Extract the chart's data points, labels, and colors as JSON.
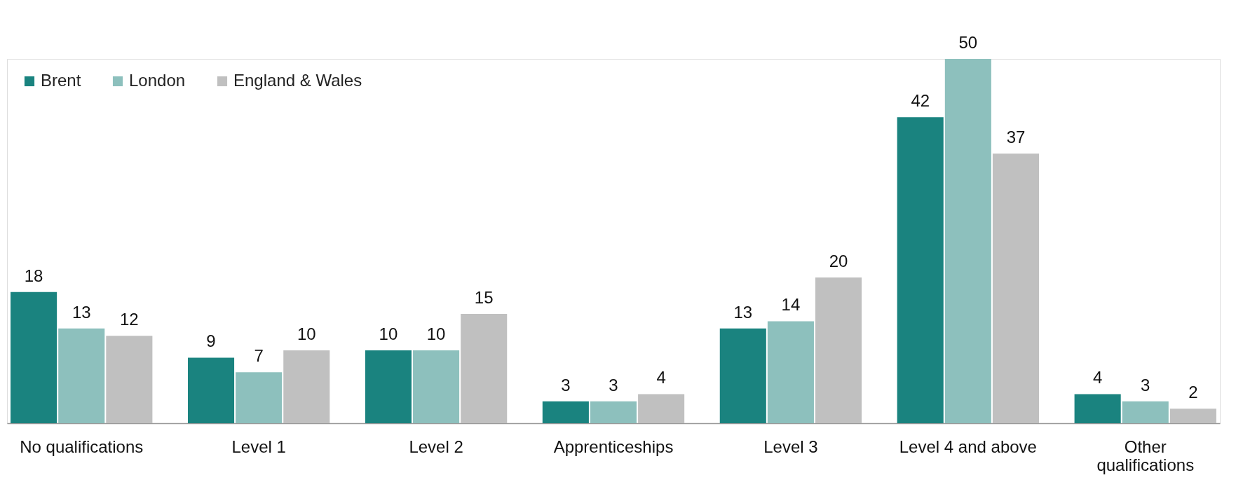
{
  "chart_data": {
    "type": "bar",
    "categories": [
      "No qualifications",
      "Level 1",
      "Level 2",
      "Apprenticeships",
      "Level 3",
      "Level 4 and above",
      "Other qualifications"
    ],
    "series": [
      {
        "name": "Brent",
        "color": "#1a837f",
        "values": [
          18,
          9,
          10,
          3,
          13,
          42,
          4
        ]
      },
      {
        "name": "London",
        "color": "#8dc0bd",
        "values": [
          13,
          7,
          10,
          3,
          14,
          50,
          3
        ]
      },
      {
        "name": "England & Wales",
        "color": "#c0c0c0",
        "values": [
          12,
          10,
          15,
          4,
          20,
          37,
          2
        ]
      }
    ],
    "data_labels": true,
    "legend": "top left",
    "grid": false
  }
}
